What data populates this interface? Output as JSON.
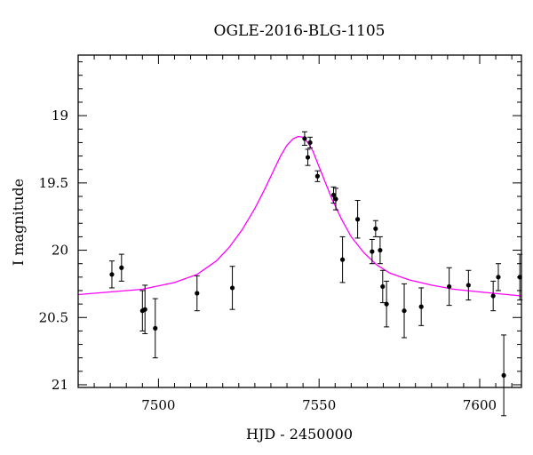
{
  "chart_data": {
    "type": "scatter",
    "title": "OGLE-2016-BLG-1105",
    "xlabel": "HJD - 2450000",
    "ylabel": "I magnitude",
    "xlim": [
      7475,
      7613
    ],
    "ylim": [
      21.02,
      18.55
    ],
    "y_inverted": true,
    "grid": false,
    "x_ticks": [
      7500,
      7550,
      7600
    ],
    "x_tick_labels": [
      "7500",
      "7550",
      "7600"
    ],
    "y_ticks": [
      19,
      19.5,
      20,
      20.5,
      21
    ],
    "y_tick_labels": [
      "19",
      "19.5",
      "20",
      "20.5",
      "21"
    ],
    "x_minor_step": 5,
    "y_minor_step": 0.1,
    "points": [
      {
        "x": 7485.5,
        "y": 20.18,
        "err": 0.1
      },
      {
        "x": 7488.5,
        "y": 20.13,
        "err": 0.1
      },
      {
        "x": 7495.0,
        "y": 20.45,
        "err": 0.15
      },
      {
        "x": 7495.8,
        "y": 20.44,
        "err": 0.18
      },
      {
        "x": 7499.0,
        "y": 20.58,
        "err": 0.22
      },
      {
        "x": 7512.0,
        "y": 20.32,
        "err": 0.13
      },
      {
        "x": 7523.0,
        "y": 20.28,
        "err": 0.16
      },
      {
        "x": 7545.5,
        "y": 19.17,
        "err": 0.05
      },
      {
        "x": 7546.5,
        "y": 19.31,
        "err": 0.06
      },
      {
        "x": 7547.2,
        "y": 19.2,
        "err": 0.04
      },
      {
        "x": 7549.5,
        "y": 19.45,
        "err": 0.04
      },
      {
        "x": 7554.5,
        "y": 19.59,
        "err": 0.06
      },
      {
        "x": 7555.2,
        "y": 19.62,
        "err": 0.08
      },
      {
        "x": 7557.3,
        "y": 20.07,
        "err": 0.17
      },
      {
        "x": 7562.0,
        "y": 19.77,
        "err": 0.14
      },
      {
        "x": 7566.5,
        "y": 20.01,
        "err": 0.09
      },
      {
        "x": 7567.6,
        "y": 19.84,
        "err": 0.06
      },
      {
        "x": 7569.0,
        "y": 20.0,
        "err": 0.1
      },
      {
        "x": 7569.8,
        "y": 20.27,
        "err": 0.12
      },
      {
        "x": 7571.0,
        "y": 20.4,
        "err": 0.17
      },
      {
        "x": 7576.5,
        "y": 20.45,
        "err": 0.2
      },
      {
        "x": 7581.8,
        "y": 20.42,
        "err": 0.14
      },
      {
        "x": 7590.5,
        "y": 20.27,
        "err": 0.14
      },
      {
        "x": 7596.5,
        "y": 20.26,
        "err": 0.11
      },
      {
        "x": 7604.2,
        "y": 20.34,
        "err": 0.11
      },
      {
        "x": 7605.8,
        "y": 20.2,
        "err": 0.1
      },
      {
        "x": 7607.5,
        "y": 20.93,
        "err": 0.3
      },
      {
        "x": 7612.5,
        "y": 20.2,
        "err": 0.17
      }
    ],
    "model": {
      "type": "line",
      "color": "#ff00ff",
      "x": [
        7475,
        7485,
        7495,
        7505,
        7512,
        7518,
        7522,
        7526,
        7530,
        7533,
        7536,
        7538,
        7540,
        7542,
        7543.5,
        7545,
        7546.5,
        7548,
        7550,
        7552,
        7554,
        7557,
        7560,
        7564,
        7568,
        7572,
        7578,
        7585,
        7592,
        7600,
        7613
      ],
      "y": [
        20.33,
        20.31,
        20.29,
        20.24,
        20.18,
        20.08,
        19.98,
        19.85,
        19.69,
        19.55,
        19.4,
        19.3,
        19.22,
        19.17,
        19.155,
        19.16,
        19.2,
        19.26,
        19.38,
        19.5,
        19.62,
        19.77,
        19.9,
        20.02,
        20.11,
        20.17,
        20.22,
        20.26,
        20.29,
        20.31,
        20.34
      ]
    }
  }
}
